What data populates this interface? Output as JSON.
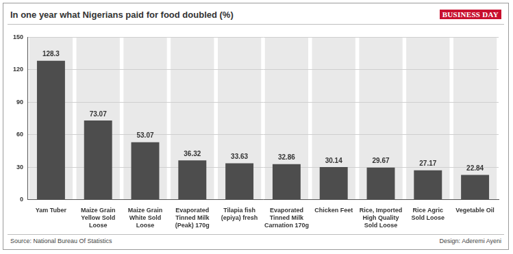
{
  "chart_data": {
    "type": "bar",
    "title": "In one year what Nigerians paid for food doubled (%)",
    "logo": "BUSINESS DAY",
    "source": "Source: National Bureau Of Statistics",
    "credit": "Design: Aderemi Ayeni",
    "categories": [
      "Yam Tuber",
      "Maize Grain Yellow Sold Loose",
      "Maize Grain White Sold Loose",
      "Evaporated Tinned Milk (Peak) 170g",
      "Tilapia fish (epiya) fresh",
      "Evaporated Tinned Milk Carnation 170g",
      "Chicken Feet",
      "Rice, Imported High Quality Sold Loose",
      "Rice Agric Sold Loose",
      "Vegetable Oil"
    ],
    "values": [
      128.3,
      73.07,
      53.07,
      36.32,
      33.63,
      32.86,
      30.14,
      29.67,
      27.17,
      22.84
    ],
    "color": "#4d4d4d",
    "ylim": [
      0,
      150
    ],
    "yticks": [
      0,
      30,
      60,
      90,
      120,
      150
    ],
    "grid": true,
    "data_labels": true
  }
}
